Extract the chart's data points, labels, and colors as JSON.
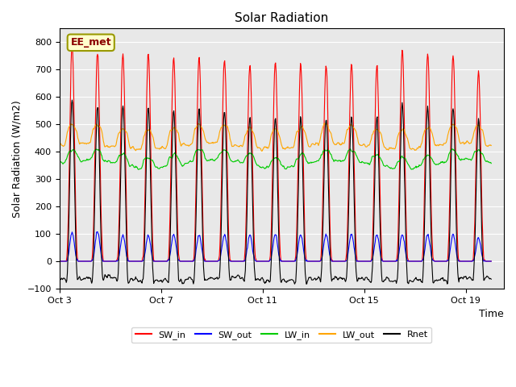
{
  "title": "Solar Radiation",
  "xlabel": "Time",
  "ylabel": "Solar Radiation (W/m2)",
  "ylim": [
    -100,
    850
  ],
  "xlim_start": 0,
  "xlim_end": 17.5,
  "xtick_labels": [
    "Oct 3",
    "Oct 7",
    "Oct 11",
    "Oct 15",
    "Oct 19"
  ],
  "xtick_positions": [
    0,
    4,
    8,
    12,
    16
  ],
  "legend_entries": [
    "SW_in",
    "SW_out",
    "LW_in",
    "LW_out",
    "Rnet"
  ],
  "line_colors": [
    "#ff0000",
    "#0000ff",
    "#00cc00",
    "#ffa500",
    "#000000"
  ],
  "annotation_text": "EE_met",
  "annotation_bbox_facecolor": "#ffffcc",
  "annotation_bbox_edgecolor": "#999900",
  "background_color": "#e8e8e8",
  "n_days": 17,
  "SW_in_peak_values": [
    790,
    760,
    755,
    760,
    745,
    745,
    740,
    720,
    730,
    720,
    715,
    720,
    715,
    770,
    760,
    760,
    695
  ],
  "SW_out_peak_values": [
    115,
    120,
    105,
    105,
    108,
    108,
    108,
    108,
    108,
    108,
    108,
    108,
    108,
    108,
    108,
    108,
    95
  ],
  "LW_in_night": 355,
  "LW_out_night": 420,
  "LW_in_day_bump": 40,
  "LW_out_day_bump": 70,
  "sunrise_hour": 6.0,
  "sunset_hour": 18.0,
  "Rnet_night": -65
}
